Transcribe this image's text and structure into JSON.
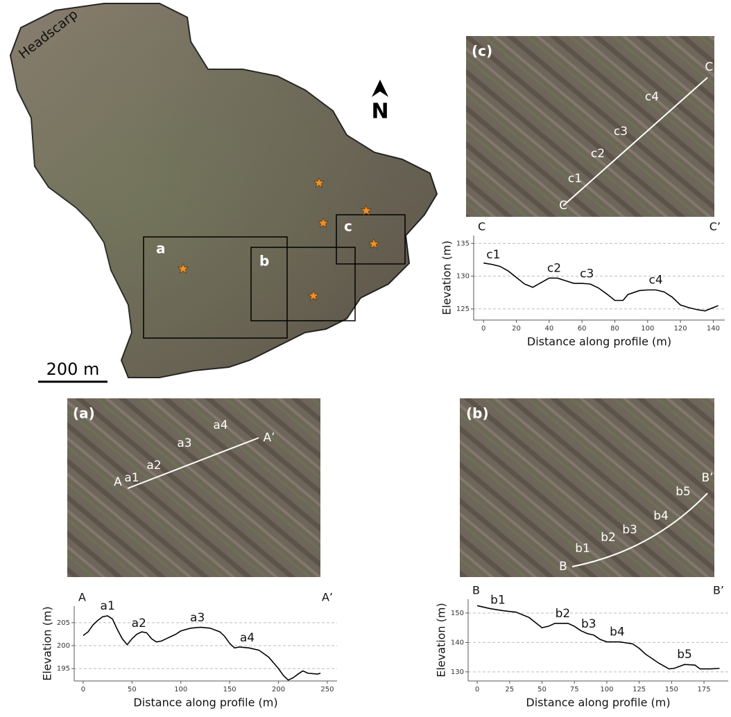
{
  "chart_data": [
    {
      "type": "line",
      "title_start": "C",
      "title_end": "C’",
      "xlabel": "Distance along profile (m)",
      "ylabel": "Elevation (m)",
      "x": [
        0,
        5,
        10,
        15,
        20,
        25,
        30,
        35,
        40,
        45,
        50,
        55,
        60,
        65,
        70,
        75,
        80,
        85,
        88,
        95,
        100,
        105,
        110,
        115,
        120,
        125,
        130,
        135,
        140,
        143
      ],
      "values": [
        132,
        131.8,
        131.5,
        130.8,
        129.8,
        128.8,
        128.3,
        129,
        129.7,
        129.7,
        129.3,
        128.9,
        128.9,
        128.8,
        128.2,
        127.3,
        126.3,
        126.3,
        127.2,
        127.8,
        127.9,
        127.9,
        127.6,
        126.8,
        125.6,
        125.2,
        124.9,
        124.7,
        125.2,
        125.5
      ],
      "color": "#000000",
      "xlim": [
        -6,
        147
      ],
      "ylim": [
        123.3,
        136.2
      ],
      "xticks": [
        0,
        20,
        40,
        60,
        80,
        100,
        120,
        140
      ],
      "yticks": [
        125,
        130,
        135
      ],
      "grid": true,
      "annotations": [
        {
          "text": "c1",
          "x": 6
        },
        {
          "text": "c2",
          "x": 43
        },
        {
          "text": "c3",
          "x": 63
        },
        {
          "text": "c4",
          "x": 105
        }
      ]
    },
    {
      "type": "line",
      "title_start": "A",
      "title_end": "A’",
      "xlabel": "Distance along profile (m)",
      "ylabel": "Elevation (m)",
      "x": [
        0,
        5,
        10,
        15,
        20,
        25,
        30,
        35,
        40,
        45,
        50,
        55,
        60,
        65,
        70,
        75,
        80,
        85,
        90,
        95,
        100,
        110,
        120,
        130,
        140,
        145,
        150,
        155,
        160,
        170,
        180,
        190,
        200,
        205,
        210,
        215,
        220,
        225,
        230,
        240,
        243
      ],
      "values": [
        202.2,
        203,
        204.5,
        205.5,
        206.3,
        206.5,
        205.8,
        203.5,
        201.5,
        200.2,
        201.5,
        202.5,
        203,
        202.8,
        201.5,
        200.8,
        201,
        201.5,
        202,
        202.5,
        203.2,
        203.8,
        204,
        203.8,
        203,
        202,
        200.5,
        199.5,
        199.7,
        199.5,
        199,
        197.5,
        195,
        193.5,
        192.5,
        193,
        193.8,
        194.5,
        194,
        193.8,
        194
      ],
      "color": "#000000",
      "xlim": [
        -9.2,
        260
      ],
      "ylim": [
        192.3,
        208.6
      ],
      "xticks": [
        0,
        50,
        100,
        150,
        200,
        250
      ],
      "yticks": [
        195,
        200,
        205
      ],
      "grid": true,
      "annotations": [
        {
          "text": "a1",
          "x": 25
        },
        {
          "text": "a2",
          "x": 57
        },
        {
          "text": "a3",
          "x": 117
        },
        {
          "text": "a4",
          "x": 168
        }
      ]
    },
    {
      "type": "line",
      "title_start": "B",
      "title_end": "B’",
      "xlabel": "Distance along profile (m)",
      "ylabel": "Elevation (m)",
      "x": [
        0,
        10,
        20,
        30,
        40,
        50,
        55,
        60,
        70,
        75,
        80,
        85,
        90,
        95,
        100,
        110,
        120,
        125,
        130,
        140,
        148,
        152,
        160,
        168,
        172,
        180,
        187
      ],
      "values": [
        152.5,
        151.5,
        150.8,
        150.3,
        148.5,
        145,
        145.5,
        146.5,
        146.5,
        145.5,
        144,
        143,
        142.5,
        141,
        140.2,
        140.2,
        139.5,
        138,
        136,
        133,
        131,
        131.2,
        132.5,
        132.3,
        131,
        131,
        131.2
      ],
      "color": "#000000",
      "xlim": [
        -7,
        193.7
      ],
      "ylim": [
        126.9,
        154.7
      ],
      "xticks": [
        0,
        25,
        50,
        75,
        100,
        125,
        150,
        175
      ],
      "yticks": [
        130,
        140,
        150
      ],
      "grid": true,
      "annotations": [
        {
          "text": "b1",
          "x": 16
        },
        {
          "text": "b2",
          "x": 66
        },
        {
          "text": "b3",
          "x": 86
        },
        {
          "text": "b4",
          "x": 108
        },
        {
          "text": "b5",
          "x": 160
        }
      ]
    }
  ],
  "map": {
    "headscarp": "Headscarp",
    "north": "N",
    "scale": "200 m",
    "boxes": [
      "a",
      "b",
      "c"
    ]
  },
  "photos": [
    {
      "label": "(c)",
      "start": "C",
      "end": "C’",
      "points": [
        "c1",
        "c2",
        "c3",
        "c4"
      ]
    },
    {
      "label": "(a)",
      "start": "A",
      "end": "A’",
      "points": [
        "a1",
        "a2",
        "a3",
        "a4"
      ]
    },
    {
      "label": "(b)",
      "start": "B",
      "end": "B’",
      "points": [
        "b1",
        "b2",
        "b3",
        "b4",
        "b5"
      ]
    }
  ]
}
